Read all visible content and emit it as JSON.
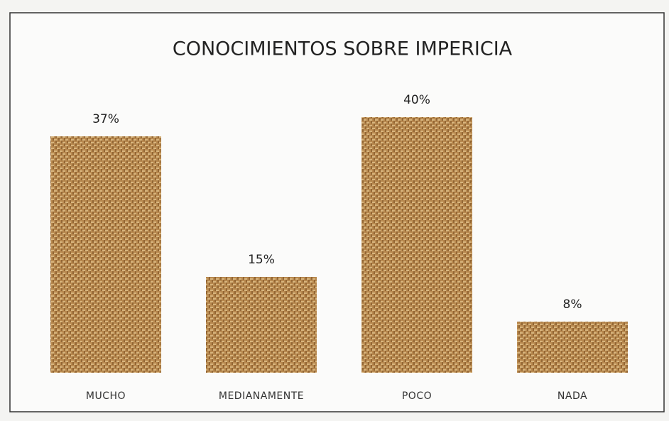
{
  "chart_data": {
    "type": "bar",
    "title": "CONOCIMIENTOS SOBRE IMPERICIA",
    "categories": [
      "MUCHO",
      "MEDIANAMENTE",
      "POCO",
      "NADA"
    ],
    "values": [
      37,
      15,
      40,
      8
    ],
    "value_labels": [
      "37%",
      "15%",
      "40%",
      "8%"
    ],
    "color": "#b8894f"
  }
}
